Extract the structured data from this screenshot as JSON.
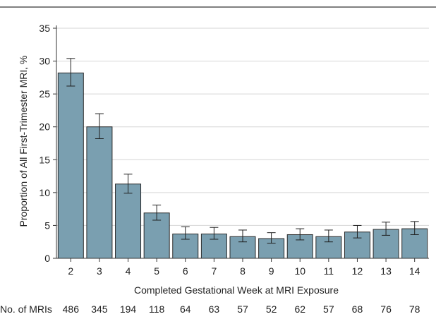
{
  "chart_data": {
    "type": "bar",
    "title": "",
    "xlabel": "Completed Gestational Week at MRI Exposure",
    "ylabel": "Proportion of All First-Trimester MRI, %",
    "ylim": [
      0,
      35
    ],
    "yticks": [
      0,
      5,
      10,
      15,
      20,
      25,
      30,
      35
    ],
    "categories": [
      "2",
      "3",
      "4",
      "5",
      "6",
      "7",
      "8",
      "9",
      "10",
      "11",
      "12",
      "13",
      "14"
    ],
    "values": [
      28.2,
      20.0,
      11.3,
      6.9,
      3.7,
      3.7,
      3.3,
      3.0,
      3.6,
      3.3,
      4.0,
      4.4,
      4.5
    ],
    "error_low": [
      26.2,
      18.2,
      9.9,
      5.8,
      2.9,
      2.9,
      2.5,
      2.3,
      2.8,
      2.5,
      3.1,
      3.5,
      3.6
    ],
    "error_high": [
      30.4,
      22.0,
      12.8,
      8.1,
      4.8,
      4.7,
      4.3,
      3.9,
      4.5,
      4.3,
      5.0,
      5.5,
      5.6
    ],
    "bar_color": "#7a9fb0",
    "bar_edge_color": "#2b2b2b",
    "grid": true,
    "grid_color": "#d6d6d6",
    "legend": "none",
    "counts_label": "No. of MRIs",
    "counts": [
      "486",
      "345",
      "194",
      "118",
      "64",
      "63",
      "57",
      "52",
      "62",
      "57",
      "68",
      "76",
      "78"
    ]
  }
}
